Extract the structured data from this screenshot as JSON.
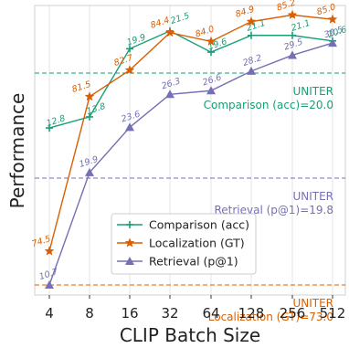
{
  "chart_data": {
    "type": "line",
    "xlabel": "CLIP Batch Size",
    "ylabel": "Performance",
    "categories": [
      "4",
      "8",
      "16",
      "32",
      "64",
      "128",
      "256",
      "512"
    ],
    "grid": true,
    "legend_position": "lower-center",
    "series": [
      {
        "name": "Comparison (acc)",
        "color": "#1a9e77",
        "marker": "plus",
        "values": [
          12.8,
          13.8,
          19.9,
          21.5,
          19.6,
          21.1,
          21.1,
          20.6
        ],
        "labels": [
          "12.8",
          "13.8",
          "19.9",
          "21.5",
          "19.6",
          "21.1",
          "21.1",
          "20.6"
        ]
      },
      {
        "name": "Localization (GT)",
        "color": "#d95f02",
        "marker": "star",
        "values": [
          74.5,
          81.5,
          82.7,
          84.4,
          84.0,
          84.9,
          85.2,
          85.0
        ],
        "labels": [
          "74.5",
          "81.5",
          "82.7",
          "84.4",
          "84.0",
          "84.9",
          "85.2",
          "85.0"
        ]
      },
      {
        "name": "Retrieval (p@1)",
        "color": "#7570b3",
        "marker": "triangle",
        "values": [
          10.7,
          19.9,
          23.6,
          26.3,
          26.6,
          28.2,
          29.5,
          30.5
        ],
        "labels": [
          "10.7",
          "19.9",
          "23.6",
          "26.3",
          "26.6",
          "28.2",
          "29.5",
          "30.5"
        ]
      }
    ],
    "reference_lines": [
      {
        "series": "Comparison (acc)",
        "value": 20.0,
        "label_top": "UNITER",
        "label_bottom": "Comparison (acc)=20.0",
        "color": "#1a9e77"
      },
      {
        "series": "Retrieval (p@1)",
        "value": 19.8,
        "label_top": "UNITER",
        "label_bottom": "Retrieval (p@1)=19.8",
        "color": "#7570b3"
      },
      {
        "series": "Localization (GT)",
        "value": 73.0,
        "label_top": "UNITER",
        "label_bottom": "Localization (GT)=73.0",
        "color": "#d95f02"
      }
    ]
  }
}
